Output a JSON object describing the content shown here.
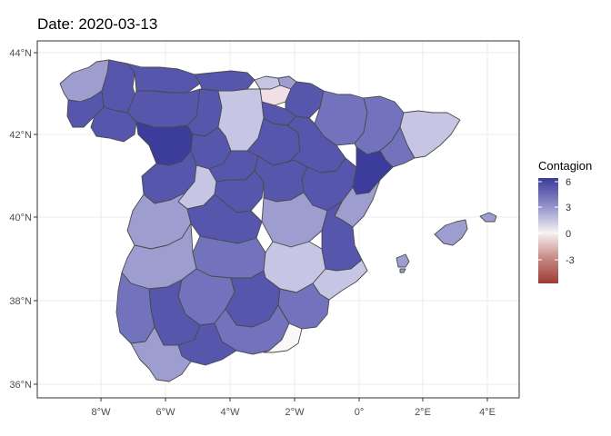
{
  "title": "Date: 2020-03-13",
  "legend": {
    "title": "Contagion",
    "ticks": [
      "6",
      "3",
      "0",
      "-3"
    ],
    "colors": {
      "high": "#3b3b9a",
      "mid": "#f7f2f2",
      "low": "#9e3b35"
    }
  },
  "axes": {
    "x_ticks": [
      "8°W",
      "6°W",
      "4°W",
      "2°W",
      "0°",
      "2°E",
      "4°E"
    ],
    "y_ticks": [
      "44°N",
      "42°N",
      "40°N",
      "38°N",
      "36°N"
    ]
  },
  "colors": {
    "border": "#4a4a4a",
    "panel_border": "#333333",
    "grid": "#ebebeb",
    "fills": {
      "deep": "#3c3c9c",
      "dark": "#5656ad",
      "mid": "#7272bd",
      "light": "#9d9dd0",
      "pale": "#c6c6e4",
      "neutral": "#fbf8f9",
      "pinkish": "#f1dfe5"
    }
  },
  "chart_data": {
    "type": "map",
    "title": "Date: 2020-03-13",
    "legend_title": "Contagion",
    "color_range": [
      -5,
      6
    ],
    "x_ticks": [
      "8°W",
      "6°W",
      "4°W",
      "2°W",
      "0°",
      "2°E",
      "4°E"
    ],
    "y_ticks": [
      "44°N",
      "42°N",
      "40°N",
      "38°N",
      "36°N"
    ]
  }
}
